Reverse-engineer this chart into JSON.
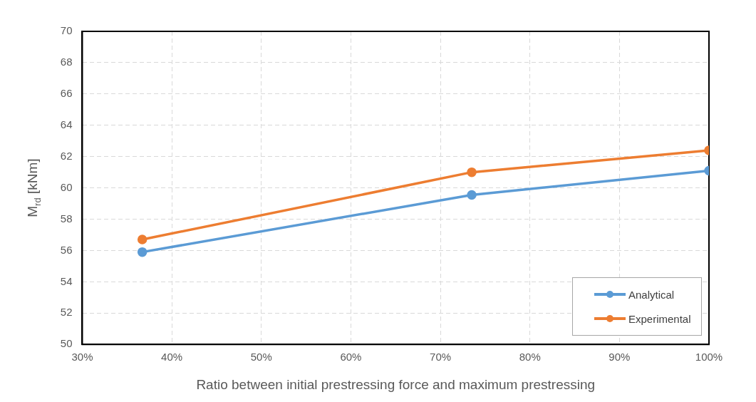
{
  "chart_data": {
    "type": "line",
    "xlabel": "Ratio between initial prestressing force and maximum prestressing",
    "ylabel": "M$_{rd}$ [kNm]",
    "x": [
      36.7,
      73.5,
      100
    ],
    "series": [
      {
        "name": "Analytical",
        "color": "#5b9bd5",
        "values": [
          55.9,
          59.55,
          61.1
        ]
      },
      {
        "name": "Experimental",
        "color": "#ed7d31",
        "values": [
          56.7,
          61.0,
          62.4
        ]
      }
    ],
    "xlim": [
      30,
      100
    ],
    "xticks": [
      {
        "value": 30,
        "label": "30%"
      },
      {
        "value": 40,
        "label": "40%"
      },
      {
        "value": 50,
        "label": "50%"
      },
      {
        "value": 60,
        "label": "60%"
      },
      {
        "value": 70,
        "label": "70%"
      },
      {
        "value": 80,
        "label": "80%"
      },
      {
        "value": 90,
        "label": "90%"
      },
      {
        "value": 100,
        "label": "100%"
      }
    ],
    "ylim": [
      50,
      70
    ],
    "yticks": [
      50,
      52,
      54,
      56,
      58,
      60,
      62,
      64,
      66,
      68,
      70
    ],
    "grid": true,
    "legend": "bottom right",
    "marker": "circle",
    "line_style": "solid"
  }
}
